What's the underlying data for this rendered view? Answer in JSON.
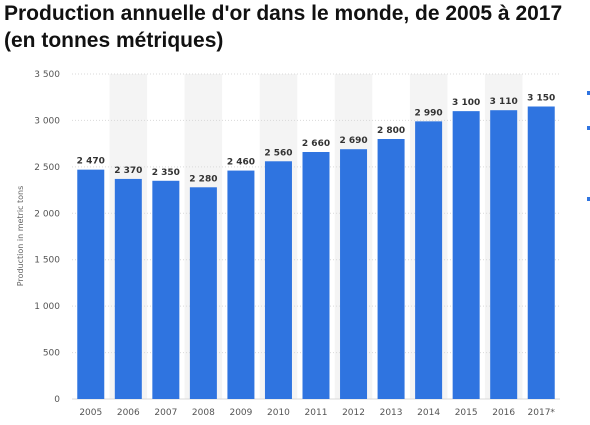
{
  "page": {
    "title_line1": "Production annuelle d'or dans le monde, de 2005 à 2017",
    "title_line2": "(en tonnes métriques)"
  },
  "colors": {
    "bar": "#2f74e0",
    "band": "#f4f4f4",
    "grid": "#d9d9d9",
    "side_mark": "#2f74e0"
  },
  "chart_data": {
    "type": "bar",
    "categories": [
      "2005",
      "2006",
      "2007",
      "2008",
      "2009",
      "2010",
      "2011",
      "2012",
      "2013",
      "2014",
      "2015",
      "2016",
      "2017*"
    ],
    "values": [
      2470,
      2370,
      2350,
      2280,
      2460,
      2560,
      2660,
      2690,
      2800,
      2990,
      3100,
      3110,
      3150
    ],
    "value_labels": [
      "2 470",
      "2 370",
      "2 350",
      "2 280",
      "2 460",
      "2 560",
      "2 660",
      "2 690",
      "2 800",
      "2 990",
      "3 100",
      "3 110",
      "3 150"
    ],
    "title": "Production annuelle d'or dans le monde, de 2005 à 2017 (en tonnes métriques)",
    "xlabel": "",
    "ylabel": "Production in metric tons",
    "ylim": [
      0,
      3500
    ],
    "yticks": [
      0,
      500,
      1000,
      1500,
      2000,
      2500,
      3000,
      3500
    ],
    "ytick_labels": [
      "0",
      "500",
      "1 000",
      "1 500",
      "2 000",
      "2 500",
      "3 000",
      "3 500"
    ],
    "grid": true,
    "legend": "none"
  }
}
